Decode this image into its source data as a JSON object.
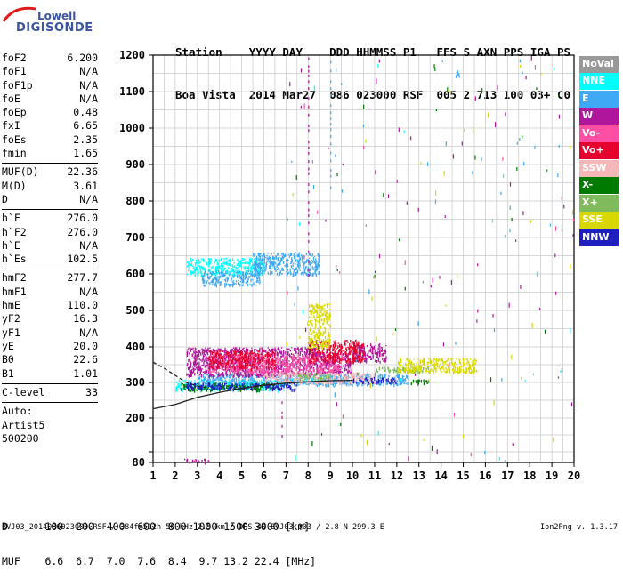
{
  "logo": {
    "line1": "Lowell",
    "line2": "DIGISONDE"
  },
  "header": {
    "row1": "Station    YYYY DAY    DDD HHMMSS P1   FFS S AXN PPS IGA PS",
    "row2": "Boa Vista  2014 Mar27  086 023000 RSF  005 2 713 100 03+ C0"
  },
  "params": {
    "group1": [
      {
        "k": "foF2",
        "v": "6.200"
      },
      {
        "k": "foF1",
        "v": "N/A"
      },
      {
        "k": "foF1p",
        "v": "N/A"
      },
      {
        "k": "foE",
        "v": "N/A"
      },
      {
        "k": "foEp",
        "v": "0.48"
      },
      {
        "k": "fxI",
        "v": "6.65"
      },
      {
        "k": "foEs",
        "v": "2.35"
      },
      {
        "k": "fmin",
        "v": "1.65"
      }
    ],
    "group2": [
      {
        "k": "MUF(D)",
        "v": "22.36"
      },
      {
        "k": "M(D)",
        "v": "3.61"
      },
      {
        "k": "D",
        "v": "N/A"
      }
    ],
    "group3": [
      {
        "k": "h`F",
        "v": "276.0"
      },
      {
        "k": "h`F2",
        "v": "276.0"
      },
      {
        "k": "h`E",
        "v": "N/A"
      },
      {
        "k": "h`Es",
        "v": "102.5"
      }
    ],
    "group4": [
      {
        "k": "hmF2",
        "v": "277.7"
      },
      {
        "k": "hmF1",
        "v": "N/A"
      },
      {
        "k": "hmE",
        "v": "110.0"
      },
      {
        "k": "yF2",
        "v": "16.3"
      },
      {
        "k": "yF1",
        "v": "N/A"
      },
      {
        "k": "yE",
        "v": "20.0"
      },
      {
        "k": "B0",
        "v": "22.6"
      },
      {
        "k": "B1",
        "v": "1.01"
      }
    ],
    "group5": [
      {
        "k": "C-level",
        "v": "33"
      }
    ]
  },
  "auto": {
    "line1": "Auto:",
    "line2": "Artist5",
    "line3": "500200"
  },
  "legend": [
    {
      "label": "NoVal",
      "color": "#999999"
    },
    {
      "label": "NNE",
      "color": "#00ffff"
    },
    {
      "label": "E",
      "color": "#3fa9f5"
    },
    {
      "label": "W",
      "color": "#b0169b"
    },
    {
      "label": "Vo-",
      "color": "#ff4fa5"
    },
    {
      "label": "Vo+",
      "color": "#e6002d"
    },
    {
      "label": "SSW",
      "color": "#f5b7b7"
    },
    {
      "label": "X-",
      "color": "#007a00"
    },
    {
      "label": "X+",
      "color": "#7fba5c"
    },
    {
      "label": "SSE",
      "color": "#d8d800"
    },
    {
      "label": "NNW",
      "color": "#1f1fbf"
    }
  ],
  "chart_data": {
    "type": "scatter",
    "xlabel": "",
    "ylabel": "",
    "xlim": [
      1,
      20
    ],
    "ylim": [
      80,
      1200
    ],
    "x_ticks": [
      1,
      2,
      3,
      4,
      5,
      6,
      7,
      8,
      9,
      10,
      11,
      12,
      13,
      14,
      15,
      16,
      17,
      18,
      19,
      20
    ],
    "y_ticks": [
      80,
      100,
      200,
      300,
      400,
      500,
      600,
      700,
      800,
      900,
      1000,
      1100,
      1200
    ],
    "y_tick_labels": [
      "80",
      "",
      "200",
      "300",
      "400",
      "500",
      "600",
      "700",
      "800",
      "900",
      "1000",
      "1100",
      "1200"
    ],
    "grid": true,
    "series": [
      {
        "name": "NNE",
        "color": "#00ffff",
        "clusters": [
          [
            2.0,
            7.0,
            280,
            310
          ],
          [
            2.5,
            6.0,
            600,
            645
          ],
          [
            7.0,
            9.5,
            305,
            315
          ]
        ]
      },
      {
        "name": "E",
        "color": "#3fa9f5",
        "clusters": [
          [
            3.0,
            12.5,
            295,
            325
          ],
          [
            3.2,
            5.8,
            570,
            610
          ],
          [
            5.5,
            8.5,
            600,
            660
          ],
          [
            14.6,
            14.8,
            1140,
            1160
          ]
        ]
      },
      {
        "name": "W",
        "color": "#b0169b",
        "clusters": [
          [
            2.5,
            8.5,
            320,
            400
          ],
          [
            10.0,
            11.5,
            360,
            410
          ],
          [
            8.5,
            10.0,
            330,
            390
          ],
          [
            2.2,
            3.6,
            82,
            88
          ]
        ]
      },
      {
        "name": "Vo-",
        "color": "#ff4fa5",
        "clusters": [
          [
            3.5,
            9.5,
            330,
            380
          ]
        ]
      },
      {
        "name": "Vo+",
        "color": "#e6002d",
        "clusters": [
          [
            3.5,
            6.5,
            340,
            390
          ],
          [
            8.0,
            10.5,
            360,
            420
          ]
        ]
      },
      {
        "name": "SSW",
        "color": "#f5b7b7",
        "clusters": [
          [
            6.0,
            11.0,
            300,
            330
          ]
        ]
      },
      {
        "name": "X-",
        "color": "#007a00",
        "clusters": [
          [
            2.2,
            6.5,
            280,
            300
          ],
          [
            12.5,
            13.5,
            300,
            310
          ]
        ]
      },
      {
        "name": "X+",
        "color": "#7fba5c",
        "clusters": [
          [
            7.5,
            9.0,
            310,
            330
          ],
          [
            11.0,
            13.5,
            330,
            345
          ]
        ]
      },
      {
        "name": "SSE",
        "color": "#d8d800",
        "clusters": [
          [
            12.0,
            15.6,
            330,
            370
          ],
          [
            8.0,
            9.0,
            400,
            520
          ]
        ]
      },
      {
        "name": "NNW",
        "color": "#1f1fbf",
        "clusters": [
          [
            2.4,
            7.5,
            282,
            300
          ],
          [
            10.0,
            12.0,
            300,
            315
          ]
        ]
      }
    ],
    "curves": [
      {
        "style": "solid",
        "points": [
          [
            1.0,
            226
          ],
          [
            2.0,
            238
          ],
          [
            3.0,
            258
          ],
          [
            4.0,
            272
          ],
          [
            5.0,
            284
          ],
          [
            6.0,
            292
          ],
          [
            7.0,
            298
          ],
          [
            8.0,
            302
          ],
          [
            9.0,
            305
          ],
          [
            10.0,
            306
          ]
        ]
      },
      {
        "style": "dashed",
        "points": [
          [
            1.0,
            357
          ],
          [
            1.5,
            340
          ],
          [
            2.0,
            320
          ],
          [
            2.5,
            300
          ],
          [
            3.0,
            290
          ],
          [
            3.5,
            285
          ]
        ]
      }
    ]
  },
  "bottom_table": {
    "row1": "D      100  200  400  600  800 1000 1500 3000 [km]",
    "row2": "MUF    6.6  6.7  7.0  7.6  8.4  9.7 13.2 22.4 [MHz]"
  },
  "footer": "BVJ03_2014086023000.RSF / 384fx512h 50 kHz 2.5 km / DPS-4D BVJ03 003 / 2.8 N 299.3 E",
  "version": "Ion2Png v. 1.3.17"
}
